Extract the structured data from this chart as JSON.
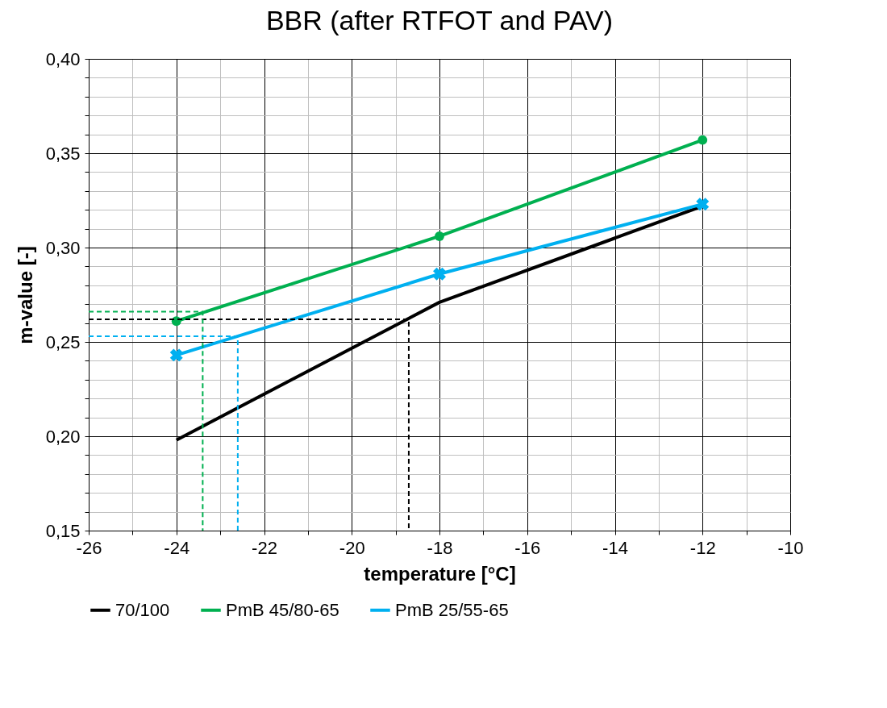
{
  "chart_data": {
    "type": "line",
    "title": "BBR  (after RTFOT and PAV)",
    "xlabel": "temperature [°C]",
    "ylabel": "m-value  [-]",
    "x": [
      -24,
      -18,
      -12
    ],
    "series": [
      {
        "name": "70/100",
        "color": "#000000",
        "values": [
          0.198,
          0.271,
          0.322
        ],
        "marker": "none"
      },
      {
        "name": "PmB 45/80-65",
        "color": "#00b050",
        "values": [
          0.261,
          0.306,
          0.357
        ],
        "marker": "circle"
      },
      {
        "name": "PmB 25/55-65",
        "color": "#00b0f0",
        "values": [
          0.243,
          0.286,
          0.323
        ],
        "marker": "cross"
      },
      {
        "color": "#000000",
        "x": [
          -26,
          -18.7,
          -18.7
        ],
        "values": [
          0.262,
          0.262,
          0.15
        ],
        "line_style": "dashed",
        "marker": "none"
      },
      {
        "color": "#00b050",
        "x": [
          -26,
          -23.4,
          -23.4
        ],
        "values": [
          0.266,
          0.266,
          0.15
        ],
        "line_style": "dashed",
        "marker": "none"
      },
      {
        "color": "#00b0f0",
        "x": [
          -26,
          -22.6,
          -22.6
        ],
        "values": [
          0.253,
          0.253,
          0.15
        ],
        "line_style": "dashed",
        "marker": "none"
      }
    ],
    "xlim": [
      -26,
      -10
    ],
    "xticks": [
      -26,
      {
        "value": -25,
        "label": null
      },
      -24,
      {
        "value": -23,
        "label": null
      },
      -22,
      {
        "value": -21,
        "label": null
      },
      -20,
      {
        "value": -19,
        "label": null
      },
      -18,
      {
        "value": -17,
        "label": null
      },
      -16,
      {
        "value": -15,
        "label": null
      },
      -14,
      {
        "value": -13,
        "label": null
      },
      -12,
      {
        "value": -11,
        "label": null
      },
      -10
    ],
    "ylim": [
      0.15,
      0.4
    ],
    "yticks": [
      {
        "value": 0.15,
        "label": "0,15"
      },
      {
        "value": 0.16,
        "label": null
      },
      {
        "value": 0.17,
        "label": null
      },
      {
        "value": 0.18,
        "label": null
      },
      {
        "value": 0.19,
        "label": null
      },
      {
        "value": 0.2,
        "label": "0,20"
      },
      {
        "value": 0.21,
        "label": null
      },
      {
        "value": 0.22,
        "label": null
      },
      {
        "value": 0.23,
        "label": null
      },
      {
        "value": 0.24,
        "label": null
      },
      {
        "value": 0.25,
        "label": "0,25"
      },
      {
        "value": 0.26,
        "label": null
      },
      {
        "value": 0.27,
        "label": null
      },
      {
        "value": 0.28,
        "label": null
      },
      {
        "value": 0.29,
        "label": null
      },
      {
        "value": 0.3,
        "label": "0,30"
      },
      {
        "value": 0.31,
        "label": null
      },
      {
        "value": 0.32,
        "label": null
      },
      {
        "value": 0.33,
        "label": null
      },
      {
        "value": 0.34,
        "label": null
      },
      {
        "value": 0.35,
        "label": "0,35"
      },
      {
        "value": 0.36,
        "label": null
      },
      {
        "value": 0.37,
        "label": null
      },
      {
        "value": 0.38,
        "label": null
      },
      {
        "value": 0.39,
        "label": null
      },
      {
        "value": 0.4,
        "label": "0,40"
      }
    ],
    "grid": true,
    "legend": "bottom"
  }
}
